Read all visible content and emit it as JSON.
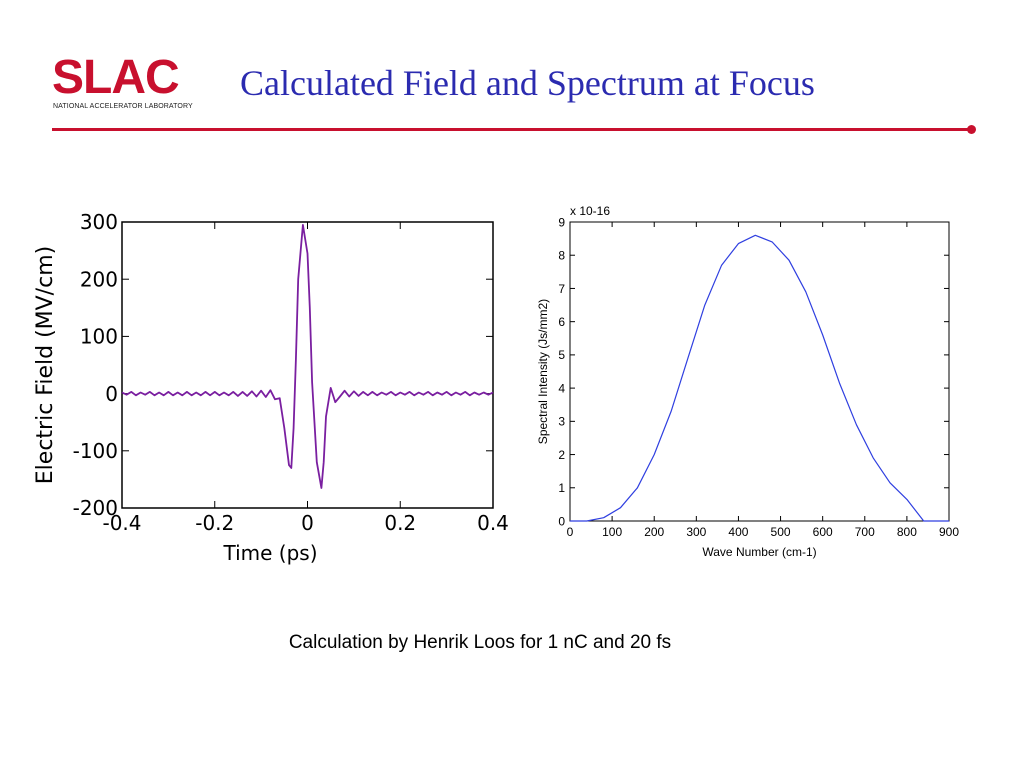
{
  "header": {
    "logo_text": "SLAC",
    "logo_subtitle": "NATIONAL ACCELERATOR LABORATORY",
    "title": "Calculated Field and Spectrum at Focus",
    "accent_color": "#c8102e",
    "title_color": "#2b2bb0"
  },
  "caption": "Calculation by Henrik Loos for 1 nC and 20 fs",
  "chart_data": [
    {
      "type": "line",
      "title": "",
      "xlabel": "Time (ps)",
      "ylabel": "Electric Field (MV/cm)",
      "xlim": [
        -0.4,
        0.4
      ],
      "ylim": [
        -200,
        300
      ],
      "xticks": [
        -0.4,
        -0.2,
        0,
        0.2,
        0.4
      ],
      "xtick_labels": [
        "-0.4",
        "-0.2",
        "0",
        "0.2",
        "0.4"
      ],
      "yticks": [
        -200,
        -100,
        0,
        100,
        200,
        300
      ],
      "ytick_labels": [
        "-200",
        "-100",
        "0",
        "100",
        "200",
        "300"
      ],
      "line_color": "#7a1fa0",
      "series": [
        {
          "x": [
            -0.4,
            -0.39,
            -0.38,
            -0.37,
            -0.36,
            -0.35,
            -0.34,
            -0.33,
            -0.32,
            -0.31,
            -0.3,
            -0.29,
            -0.28,
            -0.27,
            -0.26,
            -0.25,
            -0.24,
            -0.23,
            -0.22,
            -0.21,
            -0.2,
            -0.19,
            -0.18,
            -0.17,
            -0.16,
            -0.15,
            -0.14,
            -0.13,
            -0.12,
            -0.11,
            -0.1,
            -0.09,
            -0.08,
            -0.07,
            -0.06,
            -0.05,
            -0.04,
            -0.035,
            -0.03,
            -0.025,
            -0.02,
            -0.01,
            0,
            0.005,
            0.01,
            0.02,
            0.03,
            0.035,
            0.04,
            0.05,
            0.06,
            0.07,
            0.08,
            0.09,
            0.1,
            0.11,
            0.12,
            0.13,
            0.14,
            0.15,
            0.16,
            0.17,
            0.18,
            0.19,
            0.2,
            0.21,
            0.22,
            0.23,
            0.24,
            0.25,
            0.26,
            0.27,
            0.28,
            0.29,
            0.3,
            0.31,
            0.32,
            0.33,
            0.34,
            0.35,
            0.36,
            0.37,
            0.38,
            0.39,
            0.4
          ],
          "y": [
            2,
            -2,
            3,
            -3,
            2,
            -2,
            3,
            -3,
            2,
            -3,
            3,
            -3,
            2,
            -3,
            3,
            -3,
            2,
            -3,
            3,
            -3,
            3,
            -3,
            2,
            -3,
            3,
            -4,
            3,
            -4,
            4,
            -5,
            5,
            -6,
            6,
            -10,
            -8,
            -60,
            -125,
            -130,
            -60,
            60,
            200,
            295,
            245,
            150,
            20,
            -120,
            -165,
            -120,
            -40,
            10,
            -15,
            -5,
            5,
            -5,
            4,
            -4,
            3,
            -3,
            3,
            -3,
            2,
            -2,
            3,
            -3,
            2,
            -2,
            3,
            -3,
            2,
            -2,
            3,
            -3,
            2,
            -2,
            3,
            -3,
            2,
            -2,
            3,
            -3,
            2,
            -2,
            2,
            -2,
            2
          ]
        }
      ]
    },
    {
      "type": "line",
      "title": "",
      "xlabel": "Wave Number (cm-1)",
      "ylabel": "Spectral Intensity (Js/mm2)",
      "scale_label": "x 10-16",
      "xlim": [
        0,
        900
      ],
      "ylim": [
        0,
        9
      ],
      "xticks": [
        0,
        100,
        200,
        300,
        400,
        500,
        600,
        700,
        800,
        900
      ],
      "xtick_labels": [
        "0",
        "100",
        "200",
        "300",
        "400",
        "500",
        "600",
        "700",
        "800",
        "900"
      ],
      "yticks": [
        0,
        1,
        2,
        3,
        4,
        5,
        6,
        7,
        8,
        9
      ],
      "ytick_labels": [
        "0",
        "1",
        "2",
        "3",
        "4",
        "5",
        "6",
        "7",
        "8",
        "9"
      ],
      "line_color": "#2f3fe0",
      "series": [
        {
          "x": [
            0,
            40,
            80,
            120,
            160,
            200,
            240,
            280,
            320,
            360,
            400,
            440,
            480,
            520,
            560,
            600,
            640,
            680,
            720,
            760,
            800,
            840,
            900
          ],
          "y": [
            0,
            0,
            0.1,
            0.4,
            1.0,
            2.0,
            3.3,
            4.9,
            6.5,
            7.7,
            8.35,
            8.6,
            8.4,
            7.85,
            6.9,
            5.6,
            4.15,
            2.9,
            1.9,
            1.15,
            0.65,
            0,
            0
          ]
        }
      ]
    }
  ]
}
